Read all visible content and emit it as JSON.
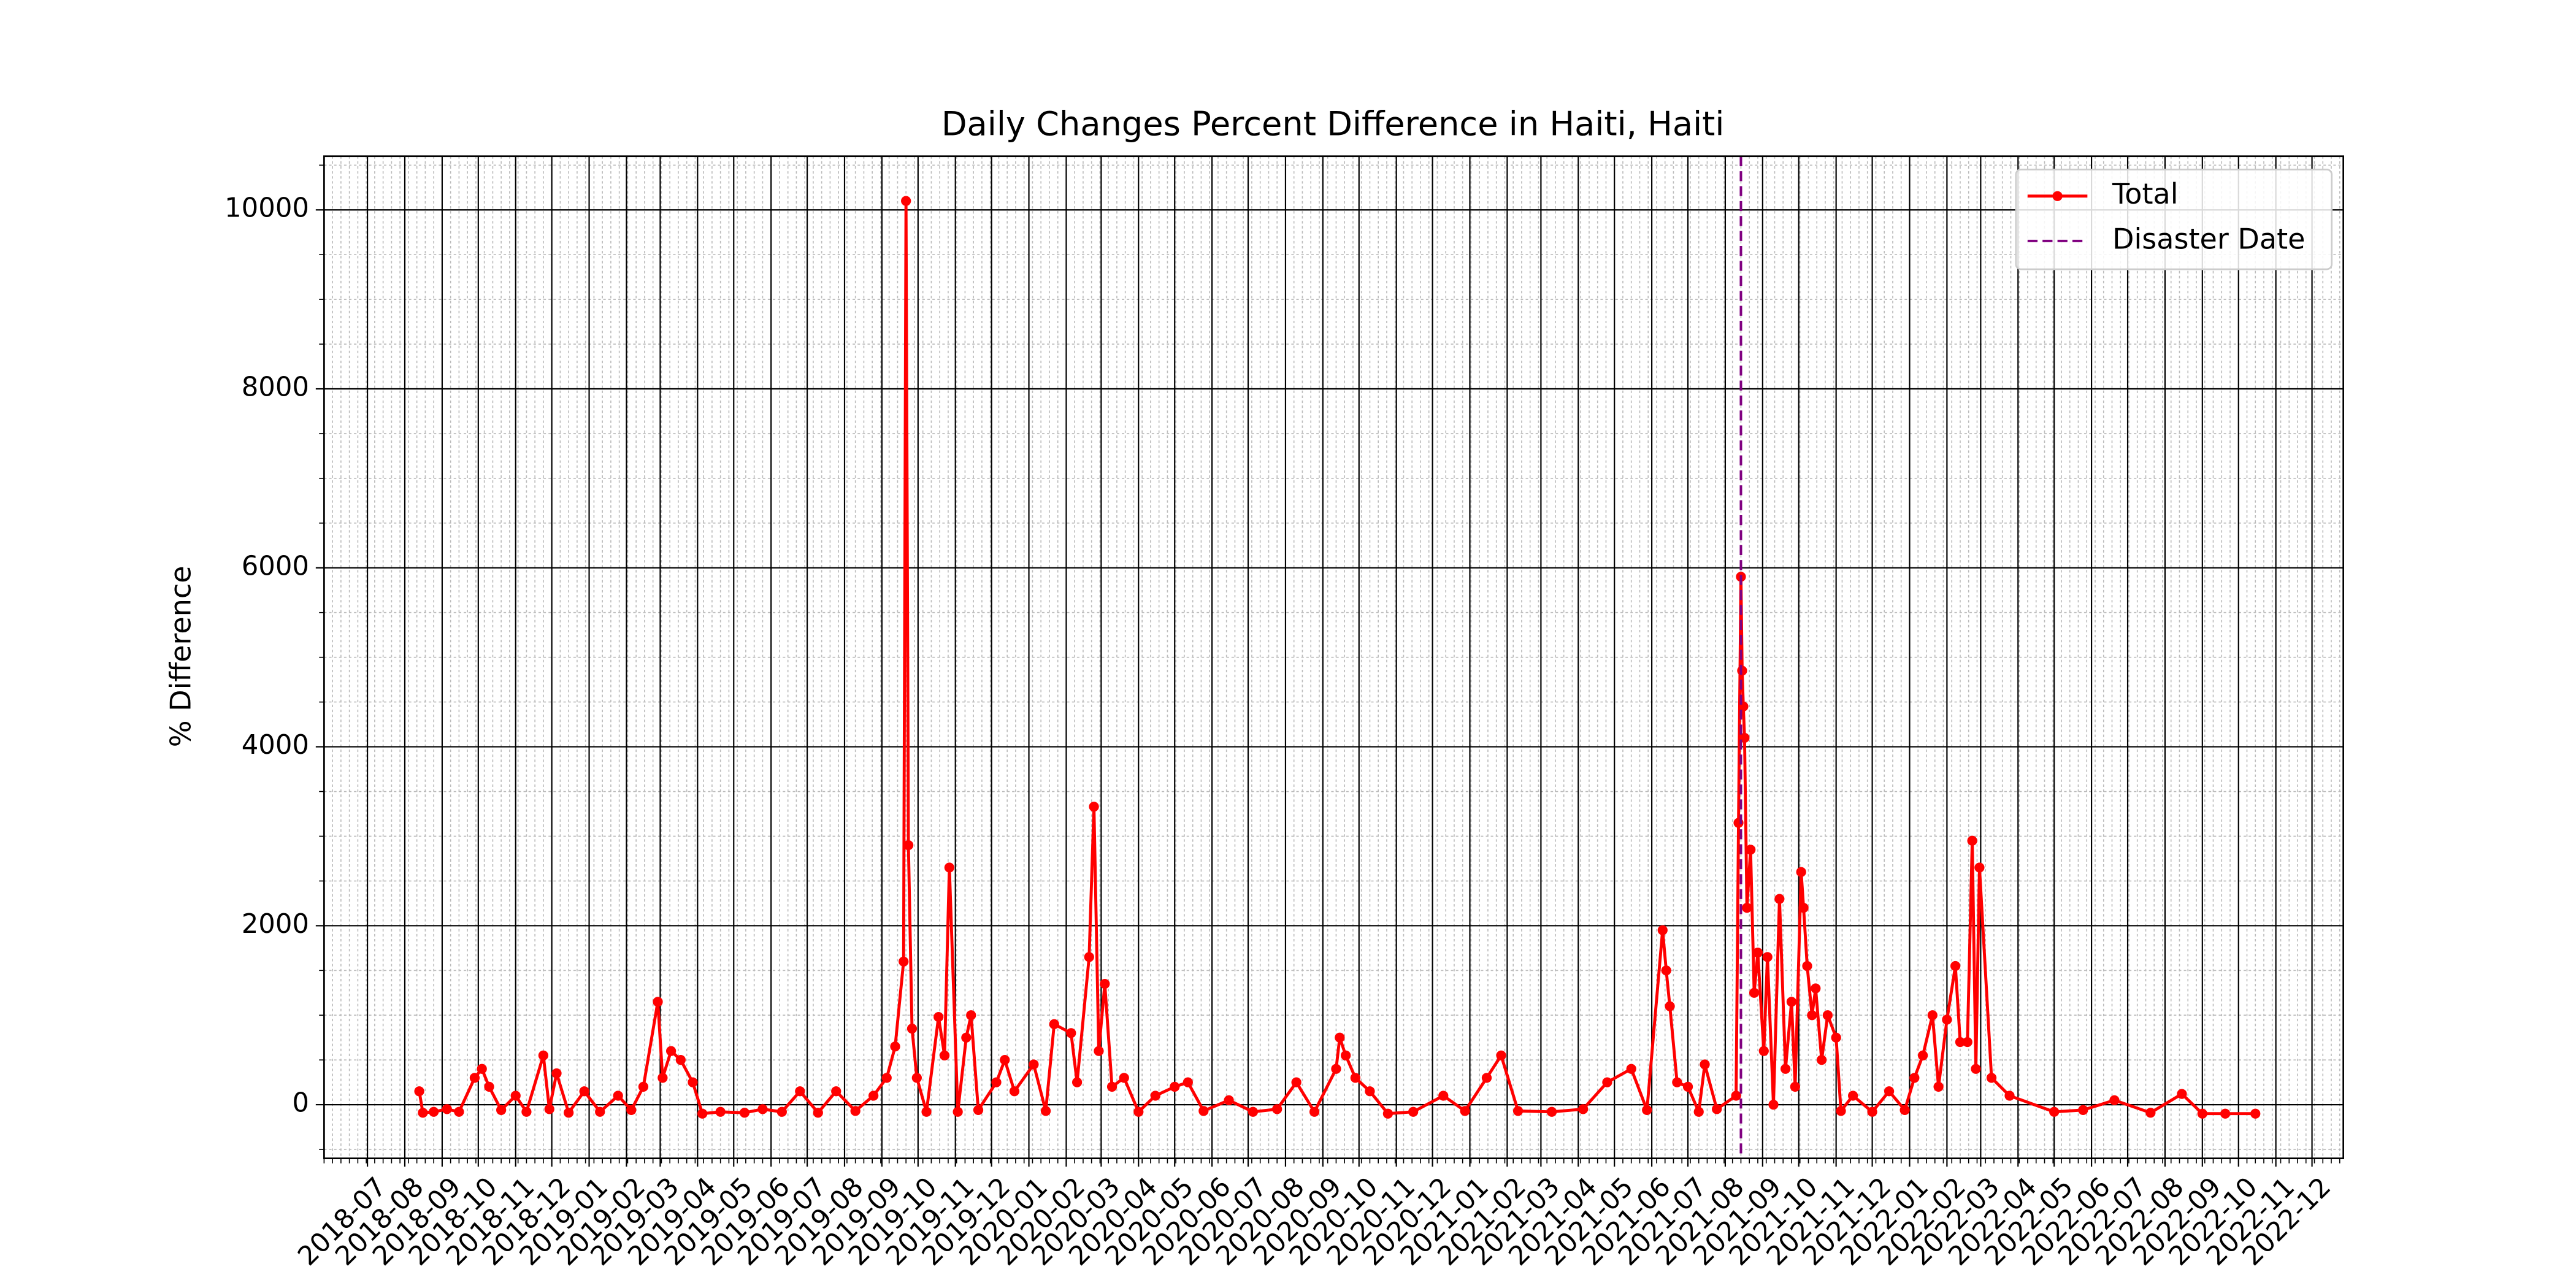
{
  "chart_data": {
    "type": "line",
    "title": "Daily Changes Percent Difference in Haiti, Haiti",
    "y_label": "% Difference",
    "x": [
      "2018-08-13",
      "2018-08-16",
      "2018-08-25",
      "2018-09-05",
      "2018-09-15",
      "2018-09-28",
      "2018-10-04",
      "2018-10-10",
      "2018-10-20",
      "2018-11-01",
      "2018-11-10",
      "2018-11-24",
      "2018-11-29",
      "2018-12-05",
      "2018-12-15",
      "2018-12-28",
      "2019-01-10",
      "2019-01-25",
      "2019-02-05",
      "2019-02-15",
      "2019-02-27",
      "2019-03-03",
      "2019-03-10",
      "2019-03-18",
      "2019-03-28",
      "2019-04-05",
      "2019-04-20",
      "2019-05-10",
      "2019-05-25",
      "2019-06-10",
      "2019-06-25",
      "2019-07-10",
      "2019-07-25",
      "2019-08-10",
      "2019-08-25",
      "2019-09-05",
      "2019-09-12",
      "2019-09-19",
      "2019-09-21",
      "2019-09-23",
      "2019-09-26",
      "2019-09-30",
      "2019-10-08",
      "2019-10-18",
      "2019-10-23",
      "2019-10-27",
      "2019-11-03",
      "2019-11-10",
      "2019-11-14",
      "2019-11-20",
      "2019-12-05",
      "2019-12-12",
      "2019-12-20",
      "2020-01-05",
      "2020-01-15",
      "2020-01-22",
      "2020-02-05",
      "2020-02-10",
      "2020-02-20",
      "2020-02-24",
      "2020-02-28",
      "2020-03-04",
      "2020-03-10",
      "2020-03-20",
      "2020-04-01",
      "2020-04-15",
      "2020-05-01",
      "2020-05-12",
      "2020-05-25",
      "2020-06-15",
      "2020-07-05",
      "2020-07-25",
      "2020-08-10",
      "2020-08-25",
      "2020-09-12",
      "2020-09-15",
      "2020-09-20",
      "2020-09-28",
      "2020-10-10",
      "2020-10-25",
      "2020-11-15",
      "2020-12-10",
      "2020-12-28",
      "2021-01-15",
      "2021-01-27",
      "2021-02-10",
      "2021-03-10",
      "2021-04-05",
      "2021-04-25",
      "2021-05-15",
      "2021-05-28",
      "2021-06-10",
      "2021-06-13",
      "2021-06-16",
      "2021-06-22",
      "2021-07-01",
      "2021-07-10",
      "2021-07-15",
      "2021-07-25",
      "2021-08-10",
      "2021-08-12",
      "2021-08-14",
      "2021-08-15",
      "2021-08-16",
      "2021-08-17",
      "2021-08-19",
      "2021-08-22",
      "2021-08-25",
      "2021-08-28",
      "2021-09-02",
      "2021-09-05",
      "2021-09-10",
      "2021-09-15",
      "2021-09-20",
      "2021-09-25",
      "2021-09-28",
      "2021-10-03",
      "2021-10-05",
      "2021-10-08",
      "2021-10-12",
      "2021-10-15",
      "2021-10-20",
      "2021-10-25",
      "2021-11-01",
      "2021-11-05",
      "2021-11-15",
      "2021-12-01",
      "2021-12-15",
      "2021-12-28",
      "2022-01-05",
      "2022-01-12",
      "2022-01-20",
      "2022-01-25",
      "2022-02-01",
      "2022-02-08",
      "2022-02-12",
      "2022-02-18",
      "2022-02-22",
      "2022-02-25",
      "2022-02-28",
      "2022-03-10",
      "2022-03-25",
      "2022-05-01",
      "2022-05-25",
      "2022-06-20",
      "2022-07-20",
      "2022-08-15",
      "2022-09-01",
      "2022-09-20",
      "2022-10-15"
    ],
    "series": [
      {
        "name": "Total",
        "color": "#ff0000",
        "values": [
          150,
          -90,
          -80,
          -50,
          -80,
          300,
          400,
          200,
          -60,
          100,
          -80,
          550,
          -50,
          350,
          -90,
          150,
          -80,
          100,
          -60,
          200,
          1150,
          300,
          600,
          500,
          250,
          -100,
          -80,
          -90,
          -50,
          -80,
          150,
          -90,
          150,
          -70,
          100,
          300,
          650,
          1600,
          10100,
          2900,
          850,
          300,
          -80,
          980,
          550,
          2650,
          -80,
          750,
          1000,
          -60,
          250,
          500,
          150,
          450,
          -70,
          900,
          800,
          250,
          1650,
          3330,
          600,
          1350,
          200,
          300,
          -80,
          100,
          200,
          250,
          -70,
          50,
          -80,
          -50,
          250,
          -80,
          400,
          750,
          550,
          300,
          150,
          -100,
          -80,
          100,
          -70,
          300,
          550,
          -70,
          -80,
          -50,
          250,
          400,
          -60,
          1950,
          1500,
          1100,
          250,
          200,
          -80,
          450,
          -50,
          100,
          3150,
          5900,
          4850,
          4450,
          4100,
          2200,
          2850,
          1250,
          1700,
          600,
          1650,
          0,
          2300,
          400,
          1150,
          200,
          2600,
          2200,
          1550,
          1000,
          1300,
          500,
          1000,
          750,
          -70,
          100,
          -80,
          150,
          -60,
          300,
          550,
          1000,
          200,
          950,
          1550,
          700,
          700,
          2950,
          400,
          2650,
          300,
          100,
          -80,
          -60,
          50,
          -90,
          120,
          -100,
          -100,
          -100
        ]
      }
    ],
    "vline": {
      "name": "Disaster Date",
      "x": "2021-08-14",
      "color": "#800080"
    },
    "xlim": [
      "2018-05-26",
      "2022-12-27"
    ],
    "xticks": [
      "2018-07",
      "2018-08",
      "2018-09",
      "2018-10",
      "2018-11",
      "2018-12",
      "2019-01",
      "2019-02",
      "2019-03",
      "2019-04",
      "2019-05",
      "2019-06",
      "2019-07",
      "2019-08",
      "2019-09",
      "2019-10",
      "2019-11",
      "2019-12",
      "2020-01",
      "2020-02",
      "2020-03",
      "2020-04",
      "2020-05",
      "2020-06",
      "2020-07",
      "2020-08",
      "2020-09",
      "2020-10",
      "2020-11",
      "2020-12",
      "2021-01",
      "2021-02",
      "2021-03",
      "2021-04",
      "2021-05",
      "2021-06",
      "2021-07",
      "2021-08",
      "2021-09",
      "2021-10",
      "2021-11",
      "2021-12",
      "2022-01",
      "2022-02",
      "2022-03",
      "2022-04",
      "2022-05",
      "2022-06",
      "2022-07",
      "2022-08",
      "2022-09",
      "2022-10",
      "2022-11",
      "2022-12"
    ],
    "ylim": [
      -600,
      10600
    ],
    "yticks": [
      0,
      2000,
      4000,
      6000,
      8000,
      10000
    ],
    "grid": true,
    "legend": "upper right"
  }
}
